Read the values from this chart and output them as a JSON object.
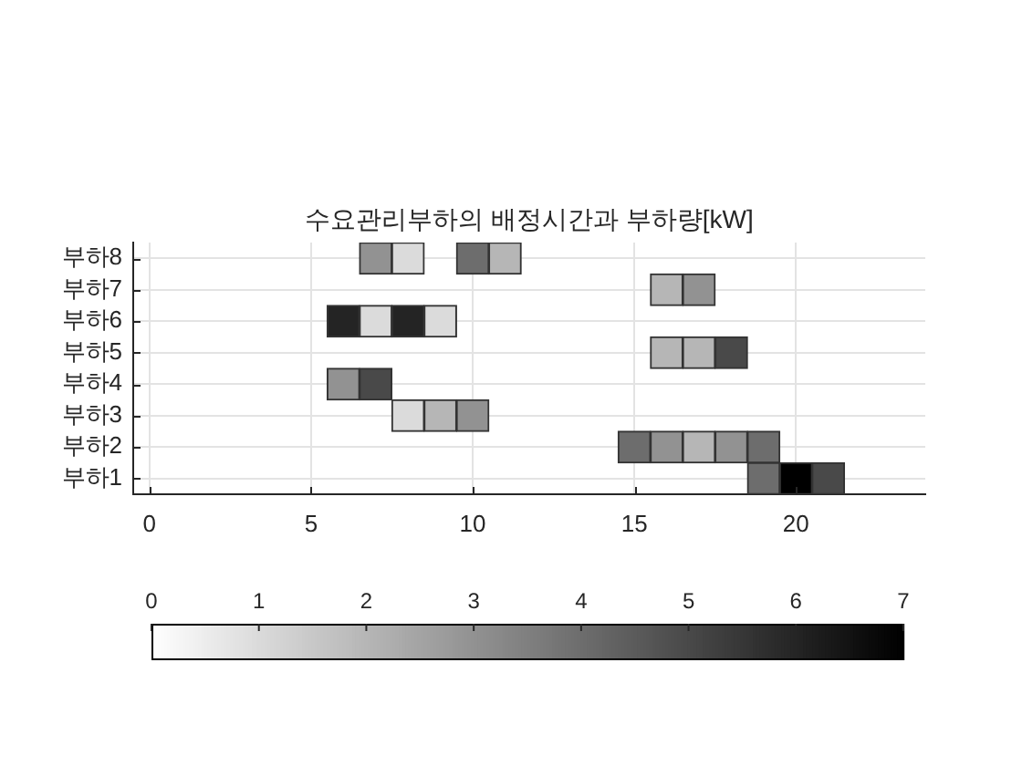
{
  "chart_data": {
    "type": "heatmap",
    "title": "수요관리부하의 배정시간과 부하량[kW]",
    "x": [
      6,
      7,
      8,
      9,
      10,
      11,
      12,
      13,
      14,
      15,
      16,
      17,
      18,
      19,
      20,
      21
    ],
    "y_categories": [
      "부하8",
      "부하7",
      "부하6",
      "부하5",
      "부하4",
      "부하3",
      "부하2",
      "부하1"
    ],
    "cells": [
      [
        null,
        3,
        1,
        null,
        4,
        2,
        null,
        null,
        null,
        null,
        null,
        null,
        null,
        null,
        null,
        null
      ],
      [
        null,
        null,
        null,
        null,
        null,
        null,
        null,
        null,
        null,
        null,
        2,
        3,
        null,
        null,
        null,
        null
      ],
      [
        6,
        1,
        6,
        1,
        null,
        null,
        null,
        null,
        null,
        null,
        null,
        null,
        null,
        null,
        null,
        null
      ],
      [
        null,
        null,
        null,
        null,
        null,
        null,
        null,
        null,
        null,
        null,
        2,
        2,
        5,
        null,
        null,
        null
      ],
      [
        3,
        5,
        null,
        null,
        null,
        null,
        null,
        null,
        null,
        null,
        null,
        null,
        null,
        null,
        null,
        null
      ],
      [
        null,
        null,
        1,
        2,
        3,
        null,
        null,
        null,
        null,
        null,
        null,
        null,
        null,
        null,
        null,
        null
      ],
      [
        null,
        null,
        null,
        null,
        null,
        null,
        null,
        null,
        null,
        4,
        3,
        2,
        3,
        4,
        null,
        null
      ],
      [
        null,
        null,
        null,
        null,
        null,
        null,
        null,
        null,
        null,
        null,
        null,
        null,
        null,
        4,
        7,
        5
      ]
    ],
    "xlim": [
      -0.5,
      24
    ],
    "xticks": [
      0,
      5,
      10,
      15,
      20
    ],
    "clim": [
      0,
      7
    ],
    "cticks": [
      0,
      1,
      2,
      3,
      4,
      5,
      6,
      7
    ],
    "grid": true
  }
}
